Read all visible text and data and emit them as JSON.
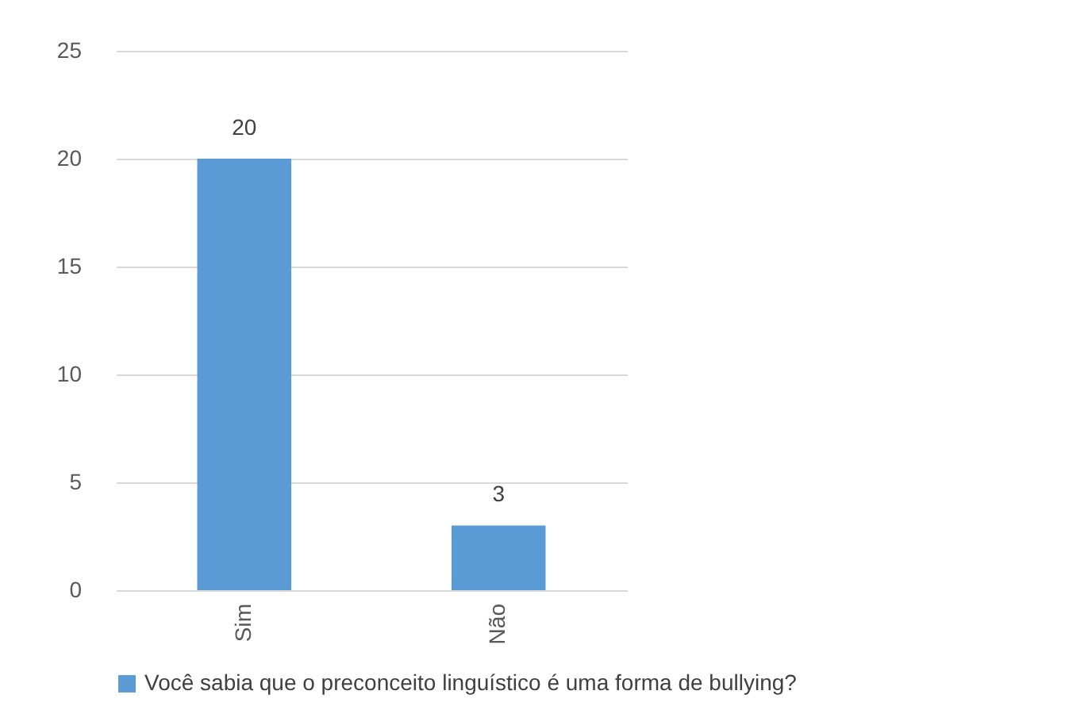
{
  "chart_data": {
    "type": "bar",
    "categories": [
      "Sim",
      "Não"
    ],
    "series": [
      {
        "name": "Você sabia que o preconceito linguístico é uma forma de bullying?",
        "color": "#5b9bd5",
        "values": [
          20,
          3
        ]
      }
    ],
    "ylim": [
      0,
      25
    ],
    "yticks": [
      0,
      5,
      10,
      15,
      20,
      25
    ],
    "grid": "y",
    "legend": "bottom",
    "data_labels": true
  }
}
